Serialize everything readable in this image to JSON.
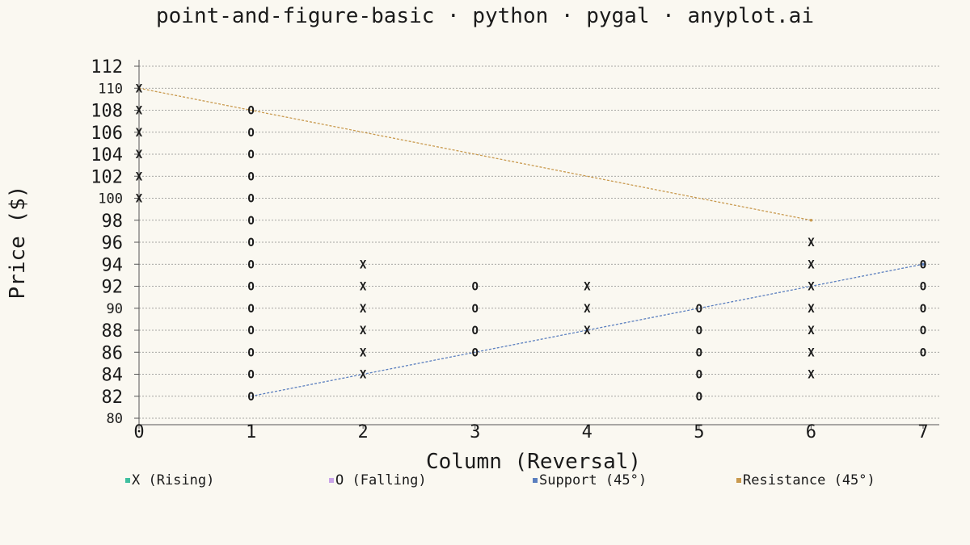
{
  "chart_data": {
    "type": "scatter",
    "title": "point-and-figure-basic · python · pygal · anyplot.ai",
    "xlabel": "Column (Reversal)",
    "ylabel": "Price ($)",
    "xlim": [
      0,
      7
    ],
    "ylim": [
      80,
      112
    ],
    "x_ticks": [
      0,
      1,
      2,
      3,
      4,
      5,
      6,
      7
    ],
    "y_ticks": [
      80,
      82,
      84,
      86,
      88,
      90,
      92,
      94,
      96,
      98,
      100,
      102,
      104,
      106,
      108,
      110,
      112
    ],
    "y_minor_ticks": [
      80,
      90,
      100,
      110
    ],
    "grid": true,
    "legend_position": "bottom",
    "series": [
      {
        "name": "X (Rising)",
        "symbol": "X",
        "color": "#3fbf9f",
        "points": [
          [
            0,
            100
          ],
          [
            0,
            102
          ],
          [
            0,
            104
          ],
          [
            0,
            106
          ],
          [
            0,
            108
          ],
          [
            0,
            110
          ],
          [
            2,
            84
          ],
          [
            2,
            86
          ],
          [
            2,
            88
          ],
          [
            2,
            90
          ],
          [
            2,
            92
          ],
          [
            2,
            94
          ],
          [
            4,
            88
          ],
          [
            4,
            90
          ],
          [
            4,
            92
          ],
          [
            6,
            84
          ],
          [
            6,
            86
          ],
          [
            6,
            88
          ],
          [
            6,
            90
          ],
          [
            6,
            92
          ],
          [
            6,
            94
          ],
          [
            6,
            96
          ]
        ]
      },
      {
        "name": "O (Falling)",
        "symbol": "O",
        "color": "#c9a3e8",
        "points": [
          [
            1,
            82
          ],
          [
            1,
            84
          ],
          [
            1,
            86
          ],
          [
            1,
            88
          ],
          [
            1,
            90
          ],
          [
            1,
            92
          ],
          [
            1,
            94
          ],
          [
            1,
            96
          ],
          [
            1,
            98
          ],
          [
            1,
            100
          ],
          [
            1,
            102
          ],
          [
            1,
            104
          ],
          [
            1,
            106
          ],
          [
            1,
            108
          ],
          [
            3,
            86
          ],
          [
            3,
            88
          ],
          [
            3,
            90
          ],
          [
            3,
            92
          ],
          [
            5,
            82
          ],
          [
            5,
            84
          ],
          [
            5,
            86
          ],
          [
            5,
            88
          ],
          [
            5,
            90
          ],
          [
            7,
            86
          ],
          [
            7,
            88
          ],
          [
            7,
            90
          ],
          [
            7,
            92
          ],
          [
            7,
            94
          ]
        ]
      },
      {
        "name": "Support (45°)",
        "color": "#5b7fbf",
        "line": [
          [
            1,
            82
          ],
          [
            7,
            94
          ]
        ]
      },
      {
        "name": "Resistance (45°)",
        "color": "#c99a4f",
        "line": [
          [
            0,
            110
          ],
          [
            6,
            98
          ]
        ]
      }
    ]
  }
}
